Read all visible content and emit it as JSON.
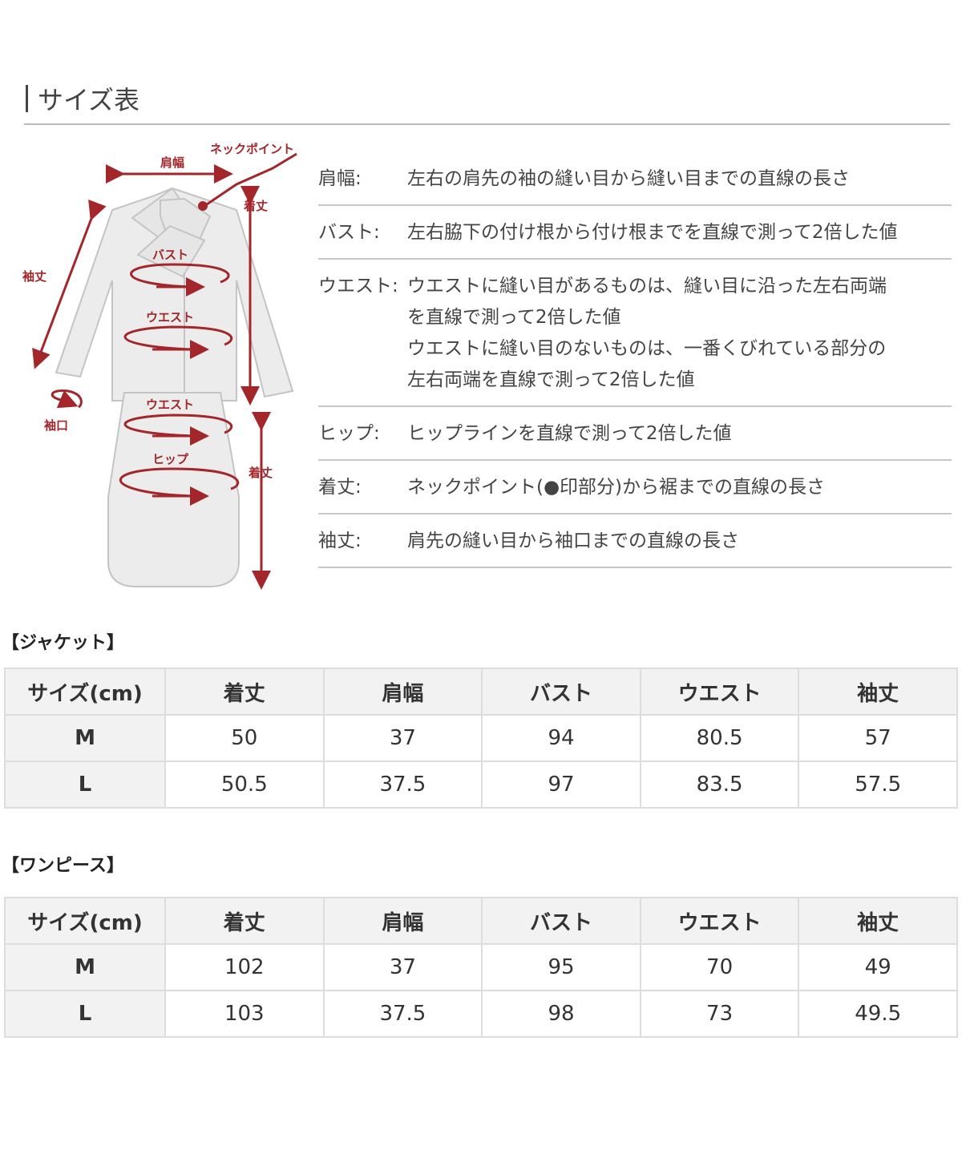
{
  "title": "サイズ表",
  "diagram": {
    "labels": {
      "shoulder": "肩幅",
      "neck_point": "ネックポイント",
      "length_top": "着丈",
      "sleeve": "袖丈",
      "bust": "バスト",
      "waist_top": "ウエスト",
      "waist_skirt": "ウエスト",
      "cuff": "袖口",
      "hip": "ヒップ",
      "length_skirt": "着丈"
    },
    "accent_color": "#a3262a"
  },
  "definitions": [
    {
      "label": "肩幅:",
      "text": [
        "左右の肩先の袖の縫い目から縫い目までの直線の長さ"
      ]
    },
    {
      "label": "バスト:",
      "text": [
        "左右脇下の付け根から付け根までを直線で測って2倍した値"
      ]
    },
    {
      "label": "ウエスト:",
      "text": [
        "ウエストに縫い目があるものは、縫い目に沿った左右両端",
        "を直線で測って2倍した値",
        "ウエストに縫い目のないものは、一番くびれている部分の",
        "左右両端を直線で測って2倍した値"
      ]
    },
    {
      "label": "ヒップ:",
      "text": [
        "ヒップラインを直線で測って2倍した値"
      ]
    },
    {
      "label": "着丈:",
      "text": [
        "ネックポイント(●印部分)から裾までの直線の長さ"
      ]
    },
    {
      "label": "袖丈:",
      "text": [
        "肩先の縫い目から袖口までの直線の長さ"
      ]
    }
  ],
  "tables": [
    {
      "title": "【ジャケット】",
      "headers": [
        "サイズ(cm)",
        "着丈",
        "肩幅",
        "バスト",
        "ウエスト",
        "袖丈"
      ],
      "rows": [
        [
          "M",
          "50",
          "37",
          "94",
          "80.5",
          "57"
        ],
        [
          "L",
          "50.5",
          "37.5",
          "97",
          "83.5",
          "57.5"
        ]
      ]
    },
    {
      "title": "【ワンピース】",
      "headers": [
        "サイズ(cm)",
        "着丈",
        "肩幅",
        "バスト",
        "ウエスト",
        "袖丈"
      ],
      "rows": [
        [
          "M",
          "102",
          "37",
          "95",
          "70",
          "49"
        ],
        [
          "L",
          "103",
          "37.5",
          "98",
          "73",
          "49.5"
        ]
      ]
    }
  ]
}
